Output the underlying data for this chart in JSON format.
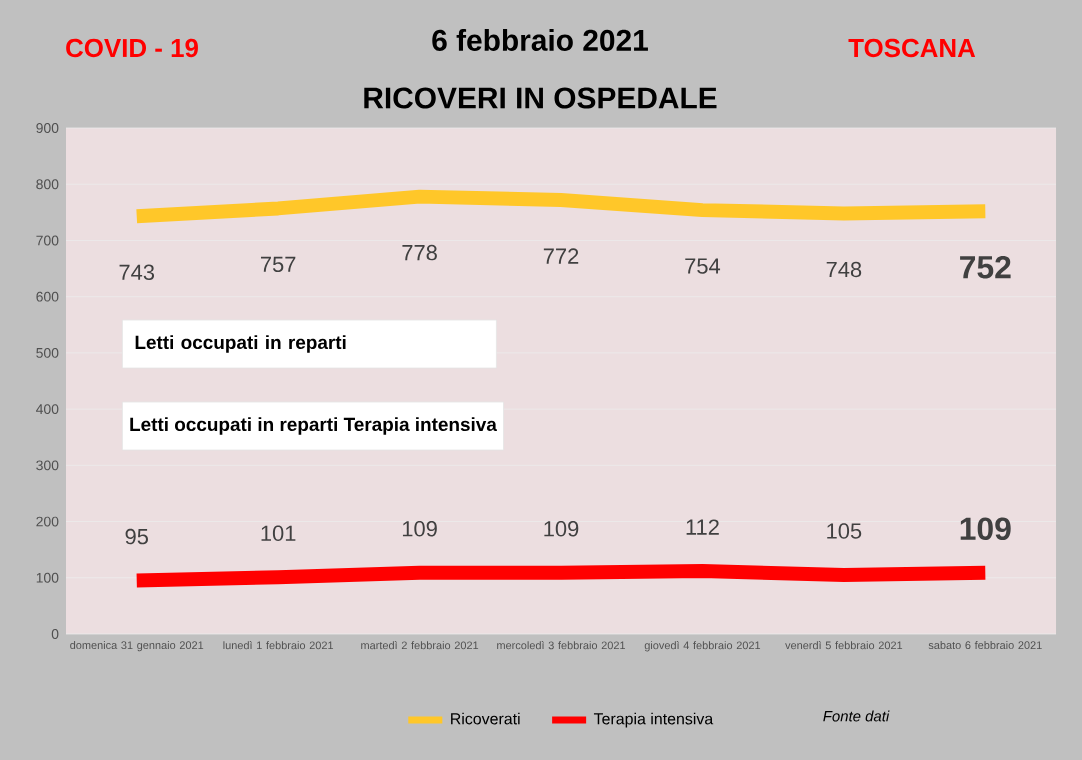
{
  "chart_data": {
    "type": "line",
    "title": "6 febbraio 2021",
    "subtitle": "RICOVERI IN OSPEDALE",
    "categories": [
      "domenica 31 gennaio 2021",
      "lunedì 1 febbraio 2021",
      "martedì 2 febbraio 2021",
      "mercoledì 3 febbraio 2021",
      "giovedì 4 febbraio 2021",
      "venerdì 5 febbraio 2021",
      "sabato 6 febbraio 2021"
    ],
    "series": [
      {
        "name": "Ricoverati",
        "color": "#ffc729",
        "values": [
          743,
          757,
          778,
          772,
          754,
          748,
          752
        ]
      },
      {
        "name": "Terapia intensiva",
        "color": "#ff0000",
        "values": [
          95,
          101,
          109,
          109,
          112,
          105,
          109
        ]
      }
    ],
    "ylim": [
      0,
      900
    ],
    "yticks": [
      0,
      100,
      200,
      300,
      400,
      500,
      600,
      700,
      800,
      900
    ],
    "grid": "y",
    "legend": "bottom",
    "data_labels": true,
    "marker": "none",
    "line_style": "solid",
    "annotations": [
      "COVID - 19",
      "TOSCANA",
      "Letti occupati in reparti",
      "Letti occupati in reparti Terapia intensiva",
      "Fonte dati"
    ]
  }
}
